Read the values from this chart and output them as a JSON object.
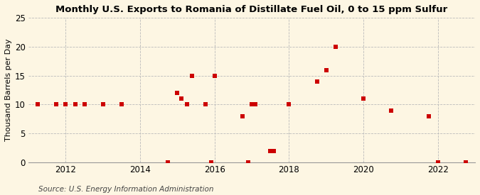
{
  "title": "Monthly U.S. Exports to Romania of Distillate Fuel Oil, 0 to 15 ppm Sulfur",
  "ylabel": "Thousand Barrels per Day",
  "source": "Source: U.S. Energy Information Administration",
  "background_color": "#fdf6e3",
  "data_points": [
    [
      2011.25,
      10
    ],
    [
      2011.75,
      10
    ],
    [
      2012.0,
      10
    ],
    [
      2012.25,
      10
    ],
    [
      2012.5,
      10
    ],
    [
      2013.0,
      10
    ],
    [
      2013.5,
      10
    ],
    [
      2014.75,
      0
    ],
    [
      2015.0,
      12
    ],
    [
      2015.1,
      11
    ],
    [
      2015.25,
      10
    ],
    [
      2015.4,
      15
    ],
    [
      2015.75,
      10
    ],
    [
      2015.9,
      0
    ],
    [
      2016.0,
      15
    ],
    [
      2016.75,
      8
    ],
    [
      2016.9,
      0
    ],
    [
      2017.0,
      10
    ],
    [
      2017.1,
      10
    ],
    [
      2017.5,
      2
    ],
    [
      2017.6,
      2
    ],
    [
      2018.0,
      10
    ],
    [
      2018.75,
      14
    ],
    [
      2019.0,
      16
    ],
    [
      2019.25,
      20
    ],
    [
      2020.0,
      11
    ],
    [
      2020.75,
      9
    ],
    [
      2021.75,
      8
    ],
    [
      2022.0,
      0
    ],
    [
      2022.75,
      0
    ]
  ],
  "xlim": [
    2011.0,
    2023.0
  ],
  "ylim": [
    0,
    25
  ],
  "yticks": [
    0,
    5,
    10,
    15,
    20,
    25
  ],
  "xticks": [
    2012,
    2014,
    2016,
    2018,
    2020,
    2022
  ],
  "marker_color": "#cc0000",
  "marker_size": 16,
  "grid_color": "#bbbbbb",
  "title_fontsize": 9.5,
  "label_fontsize": 8,
  "tick_fontsize": 8.5,
  "source_fontsize": 7.5
}
